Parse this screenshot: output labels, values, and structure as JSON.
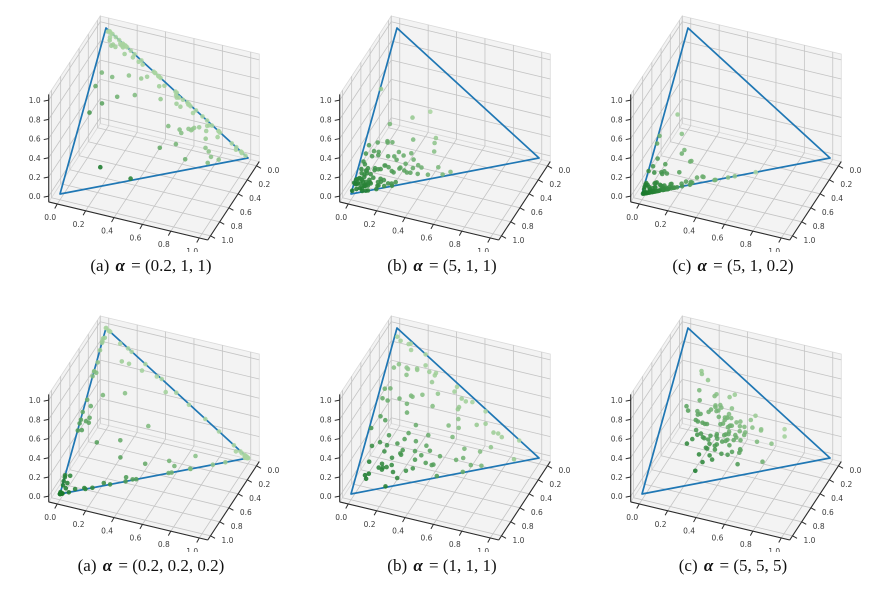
{
  "figure": {
    "description": "Scatter plots of 100 random samples drawn from Dirichlet distributions with different parameter vectors alpha, shown inside the 2-simplex (blue triangle) in 3D axes."
  },
  "chart_data": {
    "type": "scatter",
    "projection": "3d",
    "grid": true,
    "legend": "none",
    "axes": {
      "x": {
        "range": [
          0,
          1
        ],
        "tick_values": [
          0,
          0.2,
          0.4,
          0.6,
          0.8,
          1.0
        ],
        "tick_labels": [
          "0.0",
          "0.2",
          "0.4",
          "0.6",
          "0.8",
          "1.0"
        ]
      },
      "y": {
        "range": [
          0,
          1
        ],
        "tick_values": [
          0,
          0.2,
          0.4,
          0.6,
          0.8,
          1.0
        ],
        "tick_labels": [
          "0.0",
          "0.2",
          "0.4",
          "0.6",
          "0.8",
          "1.0"
        ]
      },
      "z": {
        "range": [
          0,
          1
        ],
        "tick_values": [
          0,
          0.2,
          0.4,
          0.6,
          0.8,
          1.0
        ],
        "tick_labels": [
          "0.0",
          "0.2",
          "0.4",
          "0.6",
          "0.8",
          "1.0"
        ]
      }
    },
    "simplex_vertices": [
      [
        1,
        0,
        0
      ],
      [
        0,
        1,
        0
      ],
      [
        0,
        0,
        1
      ]
    ],
    "n_points_per_panel": 100,
    "panels": [
      {
        "row": 1,
        "col": 1,
        "caption_label": "(a)",
        "symbol": "α",
        "equals": "=",
        "alpha_text": "(0.2, 1, 1)",
        "alpha": [
          0.2,
          1,
          1
        ],
        "seed": 11
      },
      {
        "row": 1,
        "col": 2,
        "caption_label": "(b)",
        "symbol": "α",
        "equals": "=",
        "alpha_text": "(5, 1, 1)",
        "alpha": [
          5,
          1,
          1
        ],
        "seed": 22
      },
      {
        "row": 1,
        "col": 3,
        "caption_label": "(c)",
        "symbol": "α",
        "equals": "=",
        "alpha_text": "(5, 1, 0.2)",
        "alpha": [
          5,
          1,
          0.2
        ],
        "seed": 33
      },
      {
        "row": 2,
        "col": 1,
        "caption_label": "(a)",
        "symbol": "α",
        "equals": "=",
        "alpha_text": "(0.2, 0.2, 0.2)",
        "alpha": [
          0.2,
          0.2,
          0.2
        ],
        "seed": 44
      },
      {
        "row": 2,
        "col": 2,
        "caption_label": "(b)",
        "symbol": "α",
        "equals": "=",
        "alpha_text": "(1, 1, 1)",
        "alpha": [
          1,
          1,
          1
        ],
        "seed": 55
      },
      {
        "row": 2,
        "col": 3,
        "caption_label": "(c)",
        "symbol": "α",
        "equals": "=",
        "alpha_text": "(5, 5, 5)",
        "alpha": [
          5,
          5,
          5
        ],
        "seed": 66
      }
    ]
  },
  "style": {
    "background": "#ffffff",
    "triangle_color": "#1f77b4",
    "point_color_light": "#aad5a1",
    "point_color_dark": "#1a7a2b",
    "pane_color": "#f3f3f3",
    "pane_edge_color": "#dadada",
    "grid_color": "#c4c4c4",
    "axis_color": "#2b2b2b",
    "tick_label_color": "#3c3c3c"
  }
}
